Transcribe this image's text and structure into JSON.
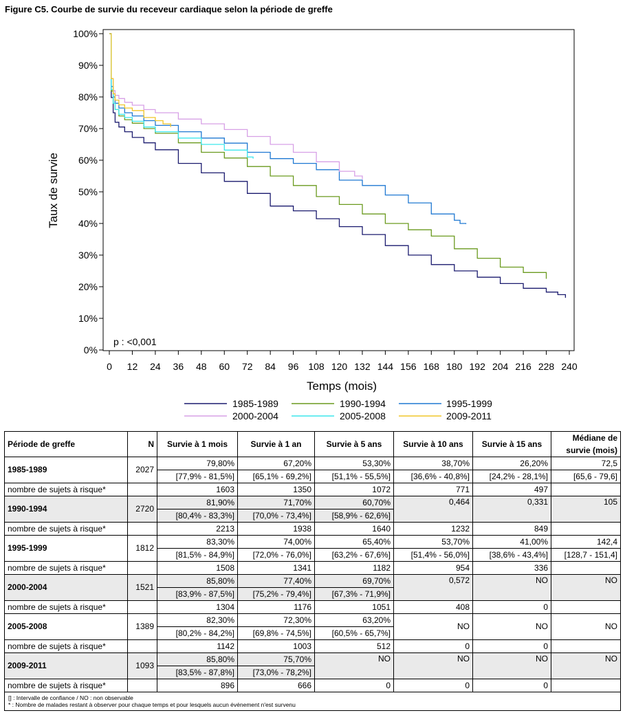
{
  "figure_title": "Figure C5. Courbe de survie du receveur cardiaque selon la période de greffe",
  "chart_data": {
    "type": "line",
    "title": "Figure C5. Courbe de survie du receveur cardiaque selon la période de greffe",
    "xlabel": "Temps (mois)",
    "ylabel": "Taux de survie",
    "xlim": [
      0,
      240
    ],
    "ylim": [
      0,
      100
    ],
    "x_ticks": [
      "0",
      "12",
      "24",
      "36",
      "48",
      "60",
      "72",
      "84",
      "96",
      "108",
      "120",
      "132",
      "144",
      "156",
      "168",
      "180",
      "192",
      "204",
      "216",
      "228",
      "240"
    ],
    "y_ticks": [
      "0%",
      "10%",
      "20%",
      "30%",
      "40%",
      "50%",
      "60%",
      "70%",
      "80%",
      "90%",
      "100%"
    ],
    "annotation": "p : <0,001",
    "grid": false,
    "legend_position": "bottom",
    "series": [
      {
        "name": "1985-1989",
        "color": "#1a1a6e",
        "x": [
          0,
          1,
          2,
          3,
          5,
          8,
          12,
          18,
          24,
          36,
          48,
          60,
          72,
          84,
          96,
          108,
          120,
          132,
          144,
          156,
          168,
          180,
          192,
          204,
          216,
          228,
          234,
          238
        ],
        "y": [
          100,
          79.8,
          75,
          72,
          70.5,
          69,
          67.2,
          65.5,
          63.3,
          59,
          56,
          53.3,
          49.5,
          45.5,
          44,
          41.5,
          39,
          36.5,
          33,
          30,
          27,
          25,
          23,
          21,
          19.5,
          18.3,
          17.5,
          16.5
        ]
      },
      {
        "name": "1990-1994",
        "color": "#6a9a1e",
        "x": [
          0,
          1,
          2,
          3,
          5,
          8,
          12,
          18,
          24,
          36,
          48,
          60,
          72,
          84,
          96,
          108,
          120,
          132,
          144,
          156,
          168,
          180,
          192,
          204,
          216,
          228
        ],
        "y": [
          100,
          81.9,
          78,
          76,
          74,
          72.8,
          71.7,
          70,
          68.5,
          65.5,
          62.5,
          60.7,
          58,
          55,
          52,
          48.5,
          46,
          43,
          40,
          38,
          36,
          32,
          29,
          26.2,
          24.5,
          22.5
        ]
      },
      {
        "name": "1995-1999",
        "color": "#1e78d2",
        "x": [
          0,
          1,
          2,
          3,
          5,
          8,
          12,
          18,
          24,
          36,
          48,
          60,
          72,
          84,
          96,
          108,
          120,
          132,
          144,
          156,
          168,
          180,
          183,
          186
        ],
        "y": [
          100,
          83.3,
          80,
          78,
          76.5,
          75,
          74,
          72.5,
          71,
          69,
          67,
          65.4,
          62.5,
          60.5,
          59,
          57,
          53.7,
          52,
          49,
          46.5,
          43,
          41,
          40,
          39.8
        ]
      },
      {
        "name": "2000-2004",
        "color": "#d7a0e6",
        "x": [
          0,
          1,
          2,
          3,
          5,
          8,
          12,
          18,
          24,
          36,
          48,
          60,
          72,
          84,
          96,
          108,
          120,
          128,
          132
        ],
        "y": [
          100,
          85.8,
          82,
          80.5,
          79.5,
          78.3,
          77.4,
          76,
          75,
          73,
          71.5,
          69.7,
          67.5,
          65,
          62.5,
          59.5,
          56.5,
          55,
          54
        ]
      },
      {
        "name": "2005-2008",
        "color": "#3ce6ec",
        "x": [
          0,
          1,
          2,
          3,
          5,
          8,
          12,
          18,
          24,
          36,
          48,
          60,
          72,
          75
        ],
        "y": [
          100,
          82.3,
          78,
          76,
          74.5,
          73.5,
          72.3,
          70.5,
          69,
          67,
          65,
          63.2,
          61,
          60.5
        ]
      },
      {
        "name": "2009-2011",
        "color": "#f0c62a",
        "x": [
          0,
          1,
          2,
          3,
          5,
          8,
          12,
          18,
          24,
          28,
          32
        ],
        "y": [
          100,
          85.8,
          81,
          79,
          77.5,
          76.5,
          75.7,
          73.5,
          72.5,
          71.5,
          70.5
        ]
      }
    ]
  },
  "table": {
    "headers": [
      "Période de greffe",
      "N",
      "Survie à 1 mois",
      "Survie à 1 an",
      "Survie à 5 ans",
      "Survie à 10 ans",
      "Survie à 15 ans",
      "Médiane de",
      "survie (mois)"
    ],
    "risk_label": "nombre de sujets à risque*",
    "groups": [
      {
        "period": "1985-1989",
        "n": "2027",
        "shade": false,
        "estimates": [
          "79,80%",
          "67,20%",
          "53,30%",
          "38,70%",
          "26,20%",
          "72,5"
        ],
        "ci": [
          "[77,9% - 81,5%]",
          "[65,1% - 69,2%]",
          "[51,1% - 55,5%]",
          "[36,6% - 40,8%]",
          "[24,2% - 28,1%]",
          "[65,6 - 79,6]"
        ],
        "risk": [
          "1603",
          "1350",
          "1072",
          "771",
          "497",
          ""
        ]
      },
      {
        "period": "1990-1994",
        "n": "2720",
        "shade": true,
        "estimates": [
          "81,90%",
          "71,70%",
          "60,70%",
          "0,464",
          "0,331",
          "105"
        ],
        "ci": [
          "[80,4% - 83,3%]",
          "[70,0% - 73,4%]",
          "[58,9% - 62,6%]",
          "",
          "",
          ""
        ],
        "risk": [
          "2213",
          "1938",
          "1640",
          "1232",
          "849",
          ""
        ]
      },
      {
        "period": "1995-1999",
        "n": "1812",
        "shade": false,
        "estimates": [
          "83,30%",
          "74,00%",
          "65,40%",
          "53,70%",
          "41,00%",
          "142,4"
        ],
        "ci": [
          "[81,5% - 84,9%]",
          "[72,0% - 76,0%]",
          "[63,2% - 67,6%]",
          "[51,4% - 56,0%]",
          "[38,6% - 43,4%]",
          "[128,7 - 151,4]"
        ],
        "risk": [
          "1508",
          "1341",
          "1182",
          "954",
          "336",
          ""
        ]
      },
      {
        "period": "2000-2004",
        "n": "1521",
        "shade": true,
        "estimates": [
          "85,80%",
          "77,40%",
          "69,70%",
          "0,572",
          "NO",
          "NO"
        ],
        "ci": [
          "[83,9% - 87,5%]",
          "[75,2% - 79,4%]",
          "[67,3% - 71,9%]",
          "",
          "",
          ""
        ],
        "risk": [
          "1304",
          "1176",
          "1051",
          "408",
          "0",
          ""
        ]
      },
      {
        "period": "2005-2008",
        "n": "1389",
        "shade": false,
        "estimates": [
          "82,30%",
          "72,30%",
          "63,20%",
          "NO",
          "NO",
          "NO"
        ],
        "ci": [
          "[80,2% - 84,2%]",
          "[69,8% - 74,5%]",
          "[60,5% - 65,7%]",
          "",
          "",
          ""
        ],
        "risk": [
          "1142",
          "1003",
          "512",
          "0",
          "0",
          ""
        ]
      },
      {
        "period": "2009-2011",
        "n": "1093",
        "shade": true,
        "estimates": [
          "85,80%",
          "75,70%",
          "NO",
          "NO",
          "NO",
          "NO"
        ],
        "ci": [
          "[83,5% - 87,8%]",
          "[73,0% - 78,2%]",
          "",
          "",
          "",
          ""
        ],
        "risk": [
          "896",
          "666",
          "0",
          "0",
          "0",
          ""
        ]
      }
    ],
    "footnotes": [
      "[] : Intervalle de confiance / NO : non observable",
      "* : Nombre de malades restant à observer pour chaque temps et pour lesquels aucun événement n'est survenu"
    ]
  }
}
